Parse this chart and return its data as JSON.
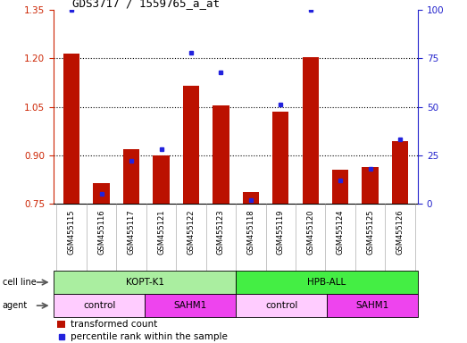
{
  "title": "GDS3717 / 1559765_a_at",
  "samples": [
    "GSM455115",
    "GSM455116",
    "GSM455117",
    "GSM455121",
    "GSM455122",
    "GSM455123",
    "GSM455118",
    "GSM455119",
    "GSM455120",
    "GSM455124",
    "GSM455125",
    "GSM455126"
  ],
  "red_values": [
    1.215,
    0.815,
    0.92,
    0.9,
    1.115,
    1.055,
    0.785,
    1.035,
    1.205,
    0.855,
    0.865,
    0.945
  ],
  "blue_values": [
    100,
    5,
    22,
    28,
    78,
    68,
    2,
    51,
    100,
    12,
    18,
    33
  ],
  "ylim_left": [
    0.75,
    1.35
  ],
  "ylim_right": [
    0,
    100
  ],
  "yticks_left": [
    0.75,
    0.9,
    1.05,
    1.2,
    1.35
  ],
  "yticks_right": [
    0,
    25,
    50,
    75,
    100
  ],
  "bar_color": "#bb1100",
  "dot_color": "#2222dd",
  "cell_lines": [
    {
      "label": "KOPT-K1",
      "start": 0,
      "end": 6,
      "color": "#aaeea0"
    },
    {
      "label": "HPB-ALL",
      "start": 6,
      "end": 12,
      "color": "#44ee44"
    }
  ],
  "agents": [
    {
      "label": "control",
      "start": 0,
      "end": 3,
      "color": "#ffccff"
    },
    {
      "label": "SAHM1",
      "start": 3,
      "end": 6,
      "color": "#ee44ee"
    },
    {
      "label": "control",
      "start": 6,
      "end": 9,
      "color": "#ffccff"
    },
    {
      "label": "SAHM1",
      "start": 9,
      "end": 12,
      "color": "#ee44ee"
    }
  ],
  "legend_red": "transformed count",
  "legend_blue": "percentile rank within the sample",
  "left_tick_color": "#cc2200",
  "right_tick_color": "#2222cc",
  "grid_yticks": [
    0.9,
    1.05,
    1.2
  ]
}
